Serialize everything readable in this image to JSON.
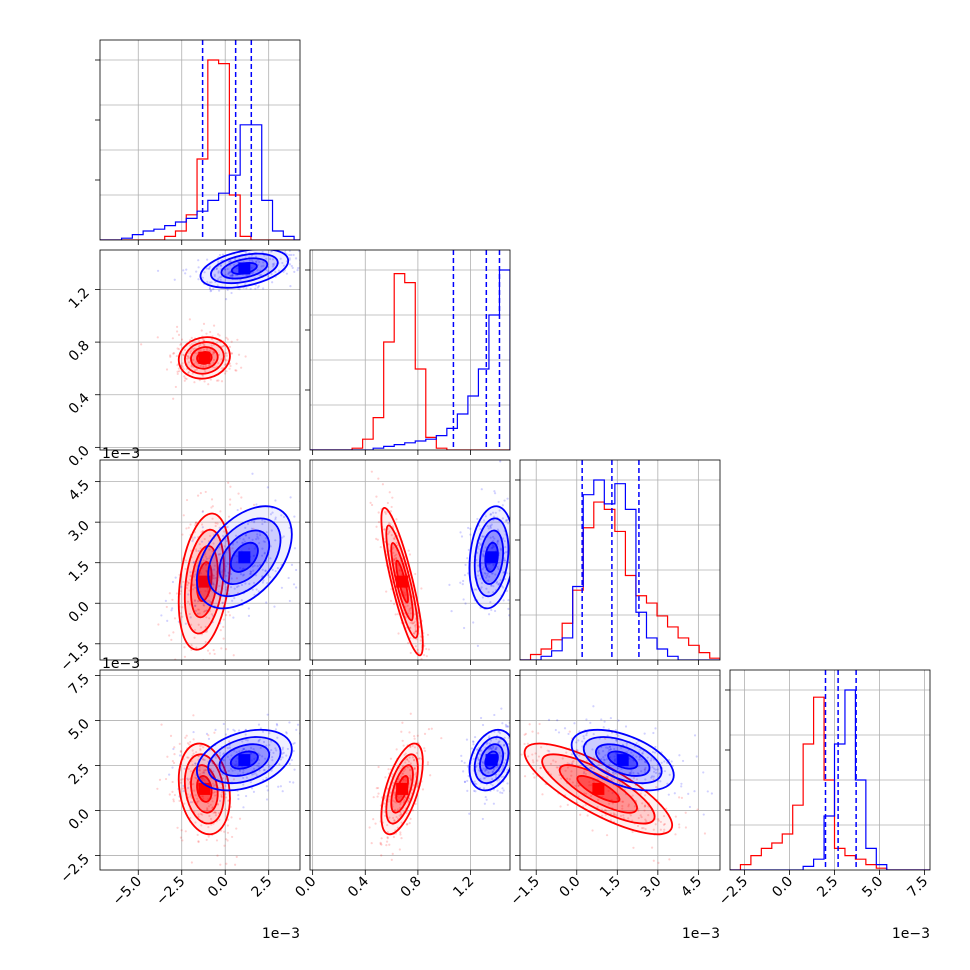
{
  "chart_data": {
    "type": "corner",
    "grid": true,
    "colors": {
      "series_a": "#ff0000",
      "series_b": "#0000ff",
      "quantiles": "#0000ff"
    },
    "series": [
      {
        "color": "#ff0000",
        "means": [
          -0.0012,
          0.68,
          0.0008,
          0.0012
        ]
      },
      {
        "color": "#0000ff",
        "means": [
          0.0011,
          1.36,
          0.0017,
          0.0028
        ]
      }
    ],
    "params": [
      {
        "range": [
          -0.0072,
          0.0043
        ],
        "ticks": [
          -0.005,
          -0.0025,
          0.0,
          0.0025
        ],
        "tick_labels": [
          "−5.0",
          "−2.5",
          "0.0",
          "2.5"
        ],
        "offset": "1e−3",
        "quantiles": [
          -0.0013,
          0.0006,
          0.0015
        ],
        "hist": {
          "bin_edges": [
            -0.0072,
            -0.00658,
            -0.00596,
            -0.00534,
            -0.00472,
            -0.0041,
            -0.00348,
            -0.00286,
            -0.00224,
            -0.00162,
            -0.001,
            -0.00038,
            0.00024,
            0.00086,
            0.00148,
            0.0021,
            0.00272,
            0.00334,
            0.00396,
            0.0043
          ],
          "red": [
            0,
            0,
            0,
            0,
            0,
            0,
            0.02,
            0.05,
            0.14,
            0.45,
            1.0,
            0.98,
            0.25,
            0.02,
            0,
            0,
            0,
            0,
            0
          ],
          "blue": [
            0,
            0,
            0.01,
            0.03,
            0.05,
            0.06,
            0.08,
            0.1,
            0.12,
            0.16,
            0.22,
            0.26,
            0.36,
            0.64,
            0.64,
            0.22,
            0.05,
            0.02,
            0
          ]
        }
      },
      {
        "range": [
          -0.02,
          1.5
        ],
        "ticks": [
          0.0,
          0.4,
          0.8,
          1.2
        ],
        "tick_labels": [
          "0.0",
          "0.4",
          "0.8",
          "1.2"
        ],
        "offset": "",
        "quantiles": [
          1.07,
          1.32,
          1.42
        ],
        "hist": {
          "bin_edges": [
            -0.02,
            0.06,
            0.14,
            0.22,
            0.3,
            0.38,
            0.46,
            0.54,
            0.62,
            0.7,
            0.78,
            0.86,
            0.94,
            1.02,
            1.1,
            1.18,
            1.26,
            1.34,
            1.42,
            1.5
          ],
          "red": [
            0,
            0,
            0,
            0,
            0.01,
            0.06,
            0.18,
            0.6,
            0.98,
            0.93,
            0.45,
            0.07,
            0.01,
            0,
            0,
            0,
            0,
            0,
            0
          ],
          "blue": [
            0,
            0,
            0,
            0,
            0,
            0,
            0.01,
            0.02,
            0.03,
            0.04,
            0.05,
            0.06,
            0.08,
            0.12,
            0.2,
            0.3,
            0.45,
            0.75,
            1.0
          ]
        }
      },
      {
        "range": [
          -0.0021,
          0.0053
        ],
        "ticks": [
          -0.0015,
          0.0,
          0.0015,
          0.003,
          0.0045
        ],
        "tick_labels": [
          "−1.5",
          "0.0",
          "1.5",
          "3.0",
          "4.5"
        ],
        "offset": "1e−3",
        "quantiles": [
          0.0002,
          0.0013,
          0.0023
        ],
        "hist": {
          "bin_edges": [
            -0.0021,
            -0.00171,
            -0.00132,
            -0.00093,
            -0.00054,
            -0.00015,
            0.00024,
            0.00063,
            0.00102,
            0.00141,
            0.0018,
            0.00219,
            0.00258,
            0.00297,
            0.00336,
            0.00375,
            0.00414,
            0.00453,
            0.00492,
            0.0053
          ],
          "red": [
            0,
            0.03,
            0.06,
            0.11,
            0.2,
            0.38,
            0.72,
            0.86,
            0.82,
            0.7,
            0.46,
            0.35,
            0.31,
            0.24,
            0.18,
            0.12,
            0.08,
            0.04,
            0.01
          ],
          "blue": [
            0,
            0,
            0.02,
            0.05,
            0.12,
            0.4,
            0.9,
            0.98,
            0.85,
            0.96,
            0.82,
            0.26,
            0.12,
            0.06,
            0.02,
            0,
            0,
            0,
            0
          ]
        }
      },
      {
        "range": [
          -0.0033,
          0.0078
        ],
        "ticks": [
          -0.0025,
          0.0,
          0.0025,
          0.005,
          0.0075
        ],
        "tick_labels": [
          "−2.5",
          "0.0",
          "2.5",
          "5.0",
          "7.5"
        ],
        "offset": "1e−3",
        "quantiles": [
          0.002,
          0.0027,
          0.0037
        ],
        "hist": {
          "bin_edges": [
            -0.0033,
            -0.00272,
            -0.00214,
            -0.00156,
            -0.00098,
            -0.0004,
            0.00018,
            0.00076,
            0.00134,
            0.00192,
            0.0025,
            0.00308,
            0.00366,
            0.00424,
            0.00482,
            0.0054,
            0.00598,
            0.00656,
            0.00714,
            0.0078
          ],
          "red": [
            0,
            0.03,
            0.08,
            0.12,
            0.15,
            0.2,
            0.36,
            0.7,
            0.96,
            0.5,
            0.12,
            0.08,
            0.06,
            0.03,
            0.01,
            0,
            0,
            0,
            0
          ],
          "blue": [
            0,
            0,
            0,
            0,
            0,
            0,
            0,
            0.02,
            0.06,
            0.3,
            0.7,
            1.0,
            0.5,
            0.12,
            0.03,
            0,
            0,
            0,
            0
          ]
        }
      }
    ],
    "pairs": [
      {
        "row": 1,
        "col": 0,
        "red": {
          "center": [
            -0.0012,
            0.68
          ],
          "sd": [
            0.0007,
            0.075
          ],
          "corr": 0.1
        },
        "blue": {
          "center": [
            0.0011,
            1.36
          ],
          "sd": [
            0.0012,
            0.07
          ],
          "corr": 0.4
        }
      },
      {
        "row": 2,
        "col": 0,
        "red": {
          "center": [
            -0.0012,
            0.0008
          ],
          "sd": [
            0.0007,
            0.0012
          ],
          "corr": 0.3
        },
        "blue": {
          "center": [
            0.0011,
            0.0017
          ],
          "sd": [
            0.0013,
            0.0009
          ],
          "corr": 0.45
        }
      },
      {
        "row": 2,
        "col": 1,
        "red": {
          "center": [
            0.68,
            0.0008
          ],
          "sd": [
            0.075,
            0.0013
          ],
          "corr": -0.85
        },
        "blue": {
          "center": [
            1.36,
            0.0017
          ],
          "sd": [
            0.08,
            0.0009
          ],
          "corr": 0.2
        }
      },
      {
        "row": 3,
        "col": 0,
        "red": {
          "center": [
            -0.0012,
            0.0012
          ],
          "sd": [
            0.0007,
            0.0012
          ],
          "corr": -0.2
        },
        "blue": {
          "center": [
            0.0011,
            0.0028
          ],
          "sd": [
            0.0013,
            0.0008
          ],
          "corr": 0.35
        }
      },
      {
        "row": 3,
        "col": 1,
        "red": {
          "center": [
            0.68,
            0.0012
          ],
          "sd": [
            0.075,
            0.0012
          ],
          "corr": 0.6
        },
        "blue": {
          "center": [
            1.36,
            0.0028
          ],
          "sd": [
            0.08,
            0.0008
          ],
          "corr": 0.3
        }
      },
      {
        "row": 3,
        "col": 2,
        "red": {
          "center": [
            0.0008,
            0.0012
          ],
          "sd": [
            0.0013,
            0.0012
          ],
          "corr": -0.8
        },
        "blue": {
          "center": [
            0.0017,
            0.0028
          ],
          "sd": [
            0.0009,
            0.0008
          ],
          "corr": -0.5
        }
      }
    ]
  }
}
